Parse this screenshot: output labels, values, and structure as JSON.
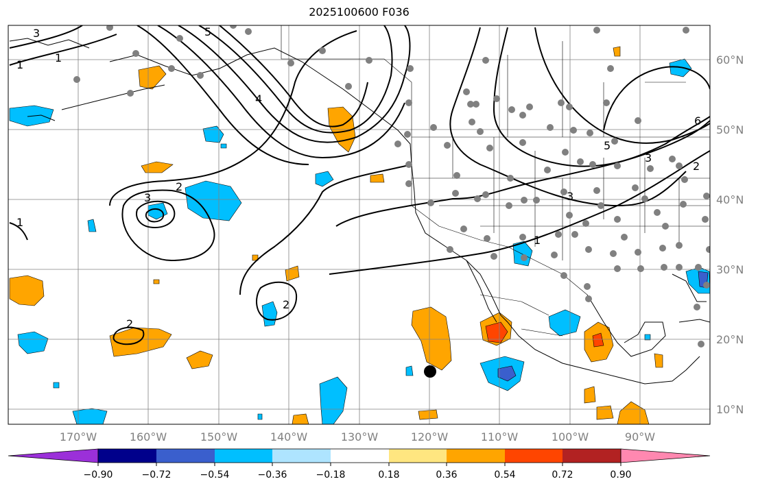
{
  "title": "2025100600 F036",
  "map": {
    "lon_labels": [
      "170°W",
      "160°W",
      "150°W",
      "140°W",
      "130°W",
      "120°W",
      "110°W",
      "100°W",
      "90°W"
    ],
    "lat_labels": [
      "60°N",
      "50°N",
      "40°N",
      "30°N",
      "20°N",
      "10°N"
    ],
    "contour_labels": [
      "1",
      "2",
      "3",
      "4",
      "5",
      "6",
      "1",
      "2",
      "3",
      "5",
      "3",
      "1",
      "2",
      "1",
      "2",
      "3"
    ]
  },
  "colorbar": {
    "colors": [
      "#9b30d9",
      "#00008b",
      "#3a5fcd",
      "#00bfff",
      "#aee4ff",
      "#ffffff",
      "#ffe680",
      "#ffa500",
      "#ff4500",
      "#b22222",
      "#ff88b0"
    ],
    "tick_labels": [
      "−0.90",
      "−0.72",
      "−0.54",
      "−0.36",
      "−0.18",
      "0.18",
      "0.36",
      "0.54",
      "0.72",
      "0.90"
    ]
  }
}
